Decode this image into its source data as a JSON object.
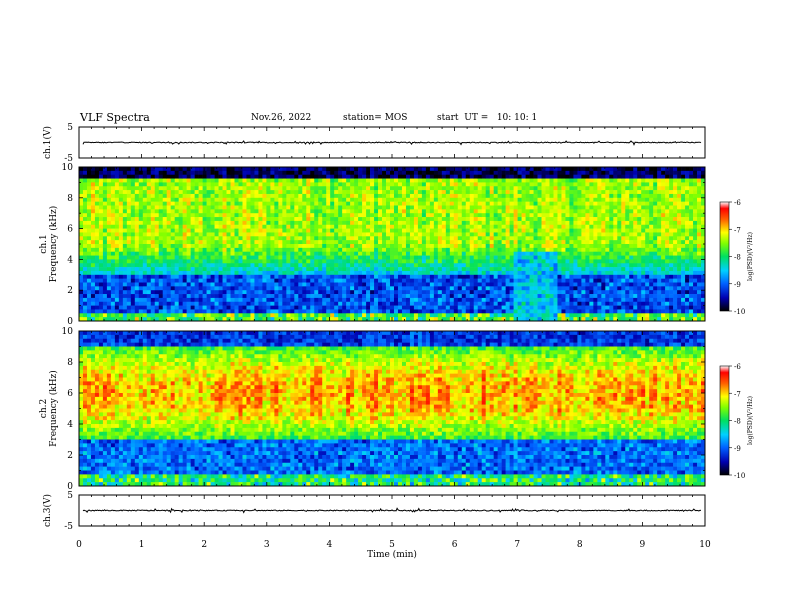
{
  "header": {
    "title": "VLF Spectra",
    "date": "Nov.26, 2022",
    "station": "station= MOS",
    "start": "start  UT =   10: 10: 1"
  },
  "chart_data": [
    {
      "type": "line",
      "panel": "ch1-waveform",
      "ylabel": "ch.1(V)",
      "ylim": [
        -5,
        5
      ],
      "yticks": [
        "5",
        "-5"
      ],
      "xlim": [
        0,
        10
      ],
      "description_values": {
        "baseline": 0
      }
    },
    {
      "type": "heatmap",
      "panel": "ch1-spectrogram",
      "ylabel": "ch.1\nFrequency (kHz)",
      "ylabel_lines": [
        "ch.1",
        "Frequency (kHz)"
      ],
      "ylim": [
        0,
        10
      ],
      "yticks": [
        "0",
        "2",
        "4",
        "6",
        "8",
        "10"
      ],
      "xlim": [
        0,
        10
      ],
      "colorbar": {
        "label": "log(PSD)(V²/Hz)",
        "ticks": [
          "-6",
          "-7",
          "-8",
          "-9",
          "-10"
        ],
        "range": [
          -10,
          -6
        ]
      }
    },
    {
      "type": "heatmap",
      "panel": "ch2-spectrogram",
      "ylabel_lines": [
        "ch.2",
        "Frequency (kHz)"
      ],
      "ylim": [
        0,
        10
      ],
      "yticks": [
        "0",
        "2",
        "4",
        "6",
        "8",
        "10"
      ],
      "xlim": [
        0,
        10
      ],
      "colorbar": {
        "label": "log(PSD)(V²/Hz)",
        "ticks": [
          "-6",
          "-7",
          "-8",
          "-9",
          "-10"
        ],
        "range": [
          -10,
          -6
        ]
      }
    },
    {
      "type": "line",
      "panel": "ch3-waveform",
      "ylabel": "ch.3(V)",
      "ylim": [
        -5,
        5
      ],
      "yticks": [
        "5",
        "-5"
      ],
      "xlim": [
        0,
        10
      ],
      "xlabel": "Time  (min)",
      "xticks": [
        "0",
        "1",
        "2",
        "3",
        "4",
        "5",
        "6",
        "7",
        "8",
        "9",
        "10"
      ]
    }
  ]
}
